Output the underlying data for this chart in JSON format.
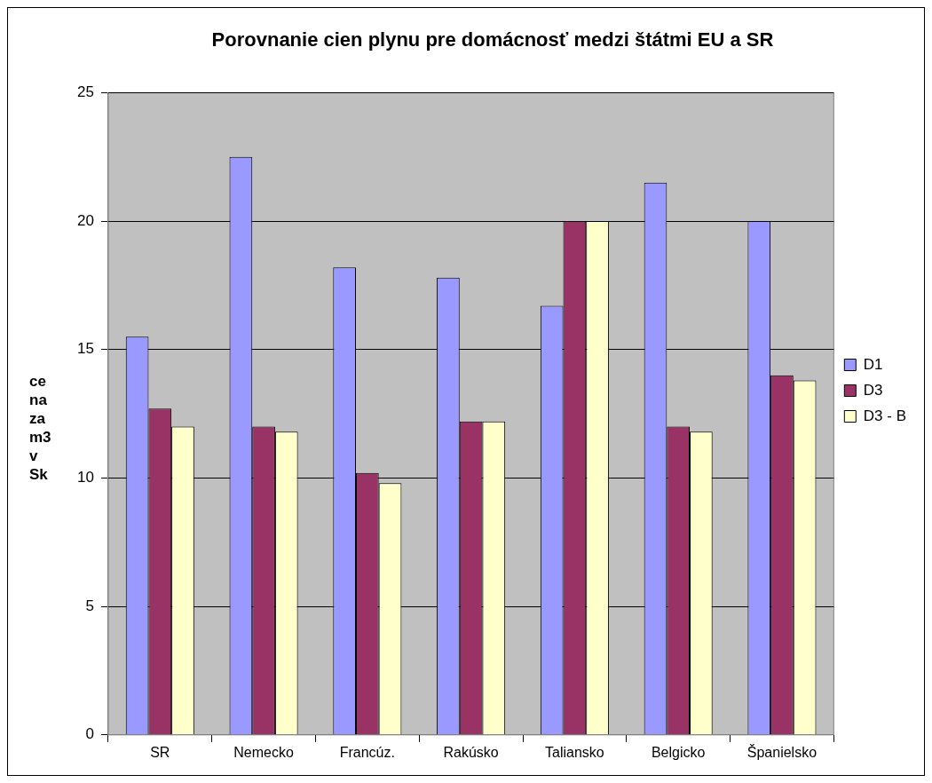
{
  "chart_data": {
    "type": "bar",
    "title": "Porovnanie cien plynu pre domácnosť medzi štátmi EU a SR",
    "ylabel": "ce na za m3 v Sk",
    "categories": [
      "SR",
      "Nemecko",
      "Francúz.",
      "Rakúsko",
      "Taliansko",
      "Belgicko",
      "Španielsko"
    ],
    "series": [
      {
        "name": "D1",
        "color": "#9999ff",
        "values": [
          15.5,
          22.5,
          18.2,
          17.8,
          16.7,
          21.5,
          20
        ]
      },
      {
        "name": "D3",
        "color": "#993366",
        "values": [
          12.7,
          12.0,
          10.2,
          12.2,
          20,
          12.0,
          14.0
        ]
      },
      {
        "name": "D3 - B",
        "color": "#ffffcc",
        "values": [
          12.0,
          11.8,
          9.8,
          12.2,
          20,
          11.8,
          13.8
        ]
      }
    ],
    "ylim": [
      0,
      25
    ],
    "yticks": [
      0,
      5,
      10,
      15,
      20,
      25
    ],
    "grid": "y",
    "legend": "right"
  }
}
